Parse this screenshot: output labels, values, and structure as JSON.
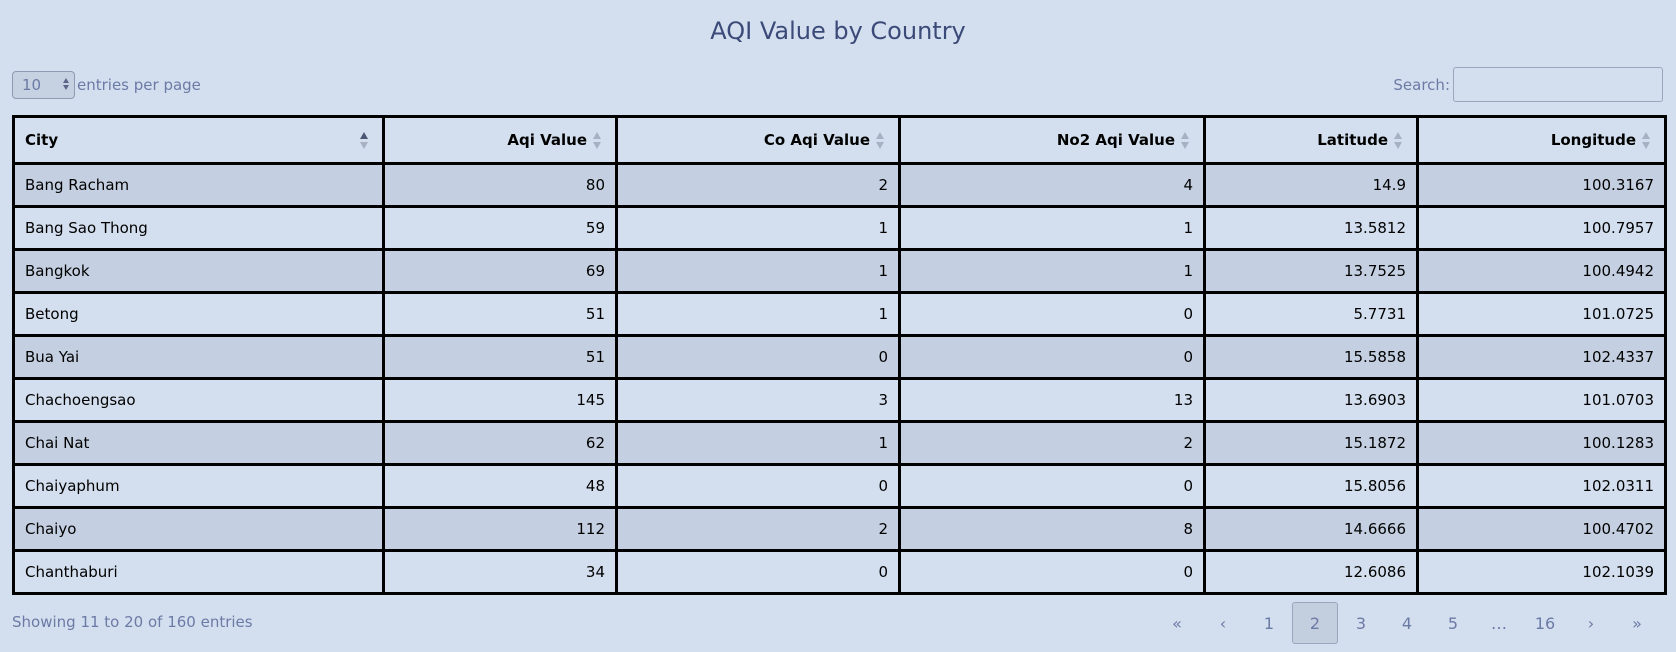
{
  "title": "AQI Value by Country",
  "length_select": {
    "value": "10",
    "label": "entries per page"
  },
  "search": {
    "label": "Search:",
    "value": ""
  },
  "columns": [
    "City",
    "Aqi Value",
    "Co Aqi Value",
    "No2 Aqi Value",
    "Latitude",
    "Longitude"
  ],
  "rows": [
    [
      "Bang Racham",
      "80",
      "2",
      "4",
      "14.9",
      "100.3167"
    ],
    [
      "Bang Sao Thong",
      "59",
      "1",
      "1",
      "13.5812",
      "100.7957"
    ],
    [
      "Bangkok",
      "69",
      "1",
      "1",
      "13.7525",
      "100.4942"
    ],
    [
      "Betong",
      "51",
      "1",
      "0",
      "5.7731",
      "101.0725"
    ],
    [
      "Bua Yai",
      "51",
      "0",
      "0",
      "15.5858",
      "102.4337"
    ],
    [
      "Chachoengsao",
      "145",
      "3",
      "13",
      "13.6903",
      "101.0703"
    ],
    [
      "Chai Nat",
      "62",
      "1",
      "2",
      "15.1872",
      "100.1283"
    ],
    [
      "Chaiyaphum",
      "48",
      "0",
      "0",
      "15.8056",
      "102.0311"
    ],
    [
      "Chaiyo",
      "112",
      "2",
      "8",
      "14.6666",
      "100.4702"
    ],
    [
      "Chanthaburi",
      "34",
      "0",
      "0",
      "12.6086",
      "102.1039"
    ]
  ],
  "info": "Showing 11 to 20 of 160 entries",
  "pagination": {
    "first": "«",
    "prev": "‹",
    "pages": [
      "1",
      "2",
      "3",
      "4",
      "5"
    ],
    "ellipsis": "…",
    "last_page": "16",
    "next": "›",
    "last": "»",
    "current": "2"
  }
}
